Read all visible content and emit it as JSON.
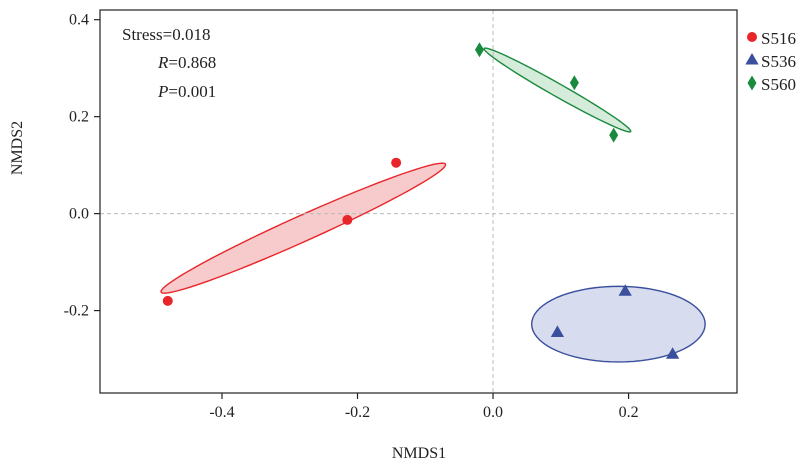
{
  "chart_data": {
    "type": "scatter",
    "title": "",
    "xlabel": "NMDS1",
    "ylabel": "NMDS2",
    "xlim": [
      -0.58,
      0.36
    ],
    "ylim": [
      -0.37,
      0.42
    ],
    "xticks": [
      -0.4,
      -0.2,
      0.0,
      0.2
    ],
    "xtick_labels": [
      "-0.4",
      "-0.2",
      "0.0",
      "0.2"
    ],
    "yticks": [
      -0.2,
      0.0,
      0.2,
      0.4
    ],
    "ytick_labels": [
      "-0.2",
      "0.0",
      "0.2",
      "0.4"
    ],
    "grid": false,
    "reference_lines": {
      "x": 0,
      "y": 0,
      "style": "dashed"
    },
    "legend_position": "right",
    "annotations": {
      "stress": "Stress=0.018",
      "r_var": "R",
      "r_val": "=0.868",
      "p_var": "P",
      "p_val": "=0.001"
    },
    "series": [
      {
        "name": "S516",
        "color": "#e8262a",
        "fill": "#f4b8bb",
        "marker": "circle",
        "points": [
          [
            -0.48,
            -0.18
          ],
          [
            -0.215,
            -0.013
          ],
          [
            -0.143,
            0.105
          ]
        ],
        "ellipse": {
          "cx": -0.28,
          "cy": -0.03,
          "rx": 0.248,
          "ry": 0.0245,
          "angle": 32.3
        }
      },
      {
        "name": "S536",
        "color": "#3a4f9e",
        "fill": "#c9d2ea",
        "marker": "triangle",
        "points": [
          [
            0.095,
            -0.245
          ],
          [
            0.195,
            -0.16
          ],
          [
            0.265,
            -0.29
          ]
        ],
        "ellipse": {
          "cx": 0.185,
          "cy": -0.228,
          "rx": 0.128,
          "ry": 0.078,
          "angle": 0
        }
      },
      {
        "name": "S560",
        "color": "#1a8a3e",
        "fill": "#c7e6cf",
        "marker": "diamond",
        "points": [
          [
            -0.02,
            0.338
          ],
          [
            0.12,
            0.27
          ],
          [
            0.178,
            0.162
          ]
        ],
        "ellipse": {
          "cx": 0.095,
          "cy": 0.255,
          "rx": 0.138,
          "ry": 0.012,
          "angle": -38.5
        }
      }
    ]
  }
}
